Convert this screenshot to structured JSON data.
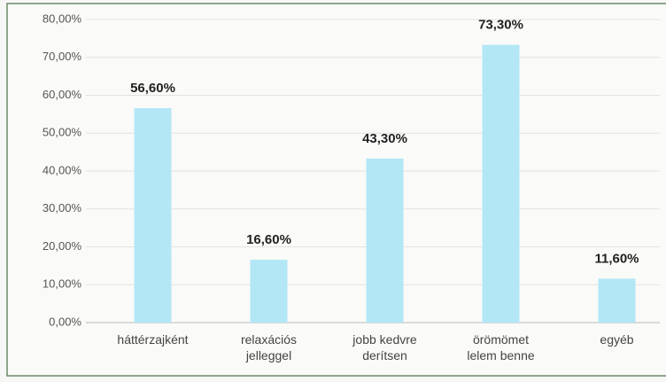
{
  "chart_data": {
    "type": "bar",
    "categories": [
      "háttérzajként",
      "relaxációs jelleggel",
      "jobb kedvre derítsen",
      "örömömet lelem benne",
      "egyéb"
    ],
    "values": [
      56.6,
      16.6,
      43.3,
      73.3,
      11.6
    ],
    "value_labels": [
      "56,60%",
      "16,60%",
      "43,30%",
      "73,30%",
      "11,60%"
    ],
    "color": "#b3e7f6",
    "ylim": [
      0,
      80
    ],
    "yticks": [
      {
        "value": 0,
        "label": "0,00%"
      },
      {
        "value": 10,
        "label": "10,00%"
      },
      {
        "value": 20,
        "label": "20,00%"
      },
      {
        "value": 30,
        "label": "30,00%"
      },
      {
        "value": 40,
        "label": "40,00%"
      },
      {
        "value": 50,
        "label": "50,00%"
      },
      {
        "value": 60,
        "label": "60,00%"
      },
      {
        "value": 70,
        "label": "70,00%"
      },
      {
        "value": 80,
        "label": "80,00%"
      }
    ],
    "grid": true
  }
}
